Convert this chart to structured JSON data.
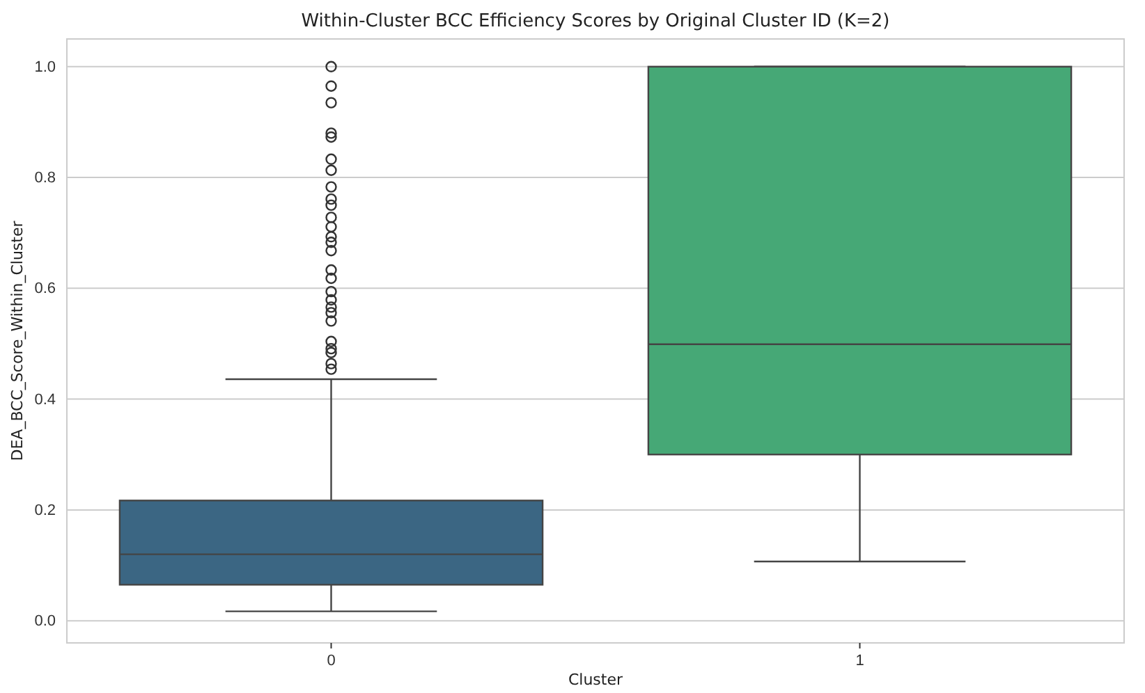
{
  "chart_data": {
    "type": "box",
    "title": "Within-Cluster BCC Efficiency Scores by Original Cluster ID (K=2)",
    "xlabel": "Cluster",
    "ylabel": "DEA_BCC_Score_Within_Cluster",
    "categories": [
      "0",
      "1"
    ],
    "series": [
      {
        "colors": [
          "#3b6683",
          "#46a876"
        ],
        "boxes": [
          {
            "low": 0.017,
            "q1": 0.065,
            "median": 0.12,
            "q3": 0.217,
            "high": 0.436,
            "outliers": [
              1.0,
              0.965,
              0.935,
              0.88,
              0.873,
              0.833,
              0.813,
              0.783,
              0.761,
              0.75,
              0.728,
              0.711,
              0.693,
              0.683,
              0.668,
              0.633,
              0.618,
              0.594,
              0.579,
              0.566,
              0.556,
              0.541,
              0.504,
              0.491,
              0.484,
              0.464,
              0.454
            ]
          },
          {
            "low": 0.107,
            "q1": 0.3,
            "median": 0.499,
            "q3": 1.0,
            "high": 1.0
          }
        ]
      }
    ],
    "ylim": [
      -0.04,
      1.05
    ],
    "yticks": [
      {
        "value": 0,
        "label": "0.0"
      },
      {
        "value": 0.2,
        "label": "0.2"
      },
      {
        "value": 0.4,
        "label": "0.4"
      },
      {
        "value": 0.6,
        "label": "0.6"
      },
      {
        "value": 0.8,
        "label": "0.8"
      },
      {
        "value": 1,
        "label": "1.0"
      }
    ],
    "grid": "y"
  }
}
